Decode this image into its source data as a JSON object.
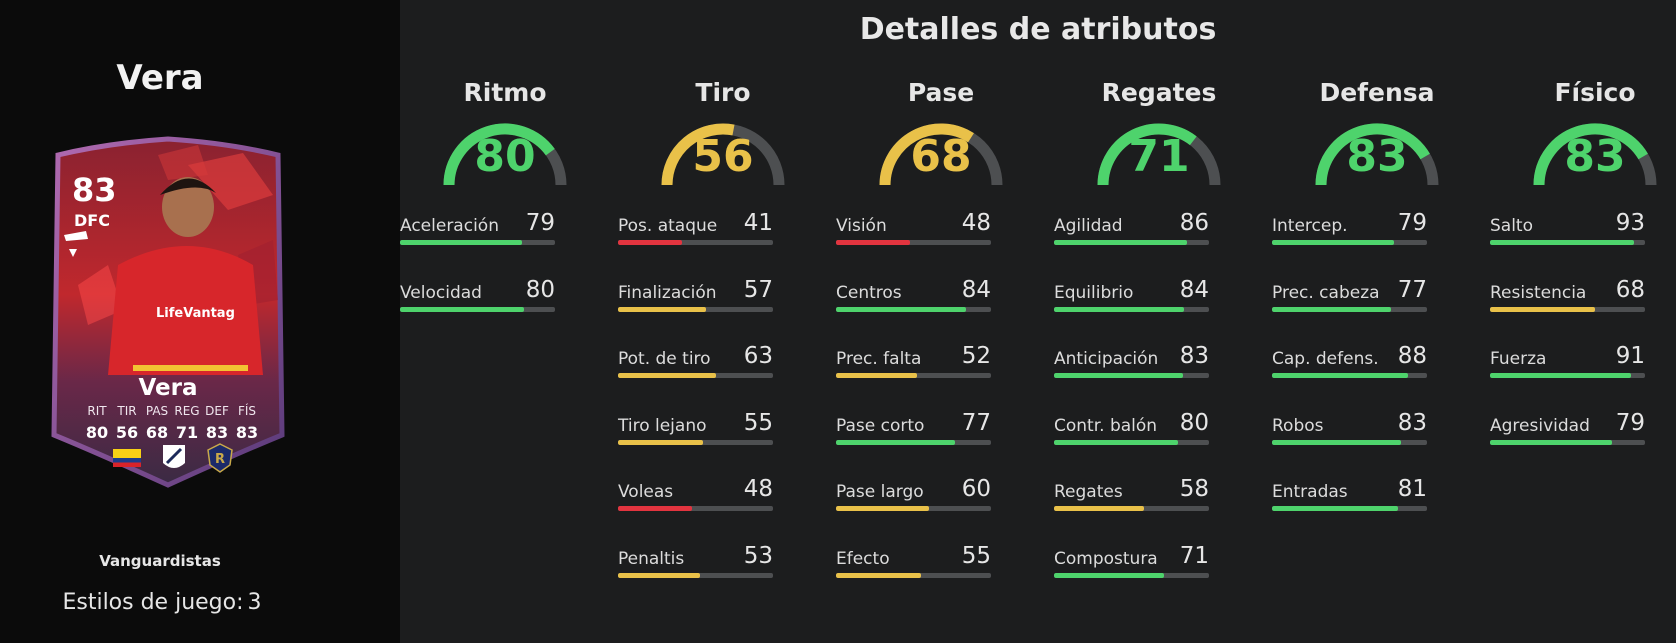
{
  "player": {
    "name": "Vera",
    "card_rating": "83",
    "card_position": "DFC",
    "card_name": "Vera",
    "card_stat_labels": [
      "RIT",
      "TIR",
      "PAS",
      "REG",
      "DEF",
      "FÍS"
    ],
    "card_stat_values": [
      "80",
      "56",
      "68",
      "71",
      "83",
      "83"
    ],
    "shirt_text": "LifeVantag",
    "card_style": "Vanguardistas",
    "playstyles_label": "Estilos de juego:",
    "playstyles_count": "3"
  },
  "title": "Detalles de atributos",
  "colors": {
    "green": "#4ed36c",
    "yellow": "#e9c149",
    "red": "#e2343f",
    "track": "#4d4f51"
  },
  "categories": [
    {
      "name": "Ritmo",
      "value": 80,
      "color": "green",
      "attrs": [
        {
          "label": "Aceleración",
          "value": 79,
          "color": "green"
        },
        {
          "label": "Velocidad",
          "value": 80,
          "color": "green"
        }
      ]
    },
    {
      "name": "Tiro",
      "value": 56,
      "color": "yellow",
      "attrs": [
        {
          "label": "Pos. ataque",
          "value": 41,
          "color": "red"
        },
        {
          "label": "Finalización",
          "value": 57,
          "color": "yellow"
        },
        {
          "label": "Pot. de tiro",
          "value": 63,
          "color": "yellow"
        },
        {
          "label": "Tiro lejano",
          "value": 55,
          "color": "yellow"
        },
        {
          "label": "Voleas",
          "value": 48,
          "color": "red"
        },
        {
          "label": "Penaltis",
          "value": 53,
          "color": "yellow"
        }
      ]
    },
    {
      "name": "Pase",
      "value": 68,
      "color": "yellow",
      "attrs": [
        {
          "label": "Visión",
          "value": 48,
          "color": "red"
        },
        {
          "label": "Centros",
          "value": 84,
          "color": "green"
        },
        {
          "label": "Prec. falta",
          "value": 52,
          "color": "yellow"
        },
        {
          "label": "Pase corto",
          "value": 77,
          "color": "green"
        },
        {
          "label": "Pase largo",
          "value": 60,
          "color": "yellow"
        },
        {
          "label": "Efecto",
          "value": 55,
          "color": "yellow"
        }
      ]
    },
    {
      "name": "Regates",
      "value": 71,
      "color": "green",
      "attrs": [
        {
          "label": "Agilidad",
          "value": 86,
          "color": "green"
        },
        {
          "label": "Equilibrio",
          "value": 84,
          "color": "green"
        },
        {
          "label": "Anticipación",
          "value": 83,
          "color": "green"
        },
        {
          "label": "Contr. balón",
          "value": 80,
          "color": "green"
        },
        {
          "label": "Regates",
          "value": 58,
          "color": "yellow"
        },
        {
          "label": "Compostura",
          "value": 71,
          "color": "green"
        }
      ]
    },
    {
      "name": "Defensa",
      "value": 83,
      "color": "green",
      "attrs": [
        {
          "label": "Intercep.",
          "value": 79,
          "color": "green"
        },
        {
          "label": "Prec. cabeza",
          "value": 77,
          "color": "green"
        },
        {
          "label": "Cap. defens.",
          "value": 88,
          "color": "green"
        },
        {
          "label": "Robos",
          "value": 83,
          "color": "green"
        },
        {
          "label": "Entradas",
          "value": 81,
          "color": "green"
        }
      ]
    },
    {
      "name": "Físico",
      "value": 83,
      "color": "green",
      "attrs": [
        {
          "label": "Salto",
          "value": 93,
          "color": "green"
        },
        {
          "label": "Resistencia",
          "value": 68,
          "color": "yellow"
        },
        {
          "label": "Fuerza",
          "value": 91,
          "color": "green"
        },
        {
          "label": "Agresividad",
          "value": 79,
          "color": "green"
        }
      ]
    }
  ]
}
